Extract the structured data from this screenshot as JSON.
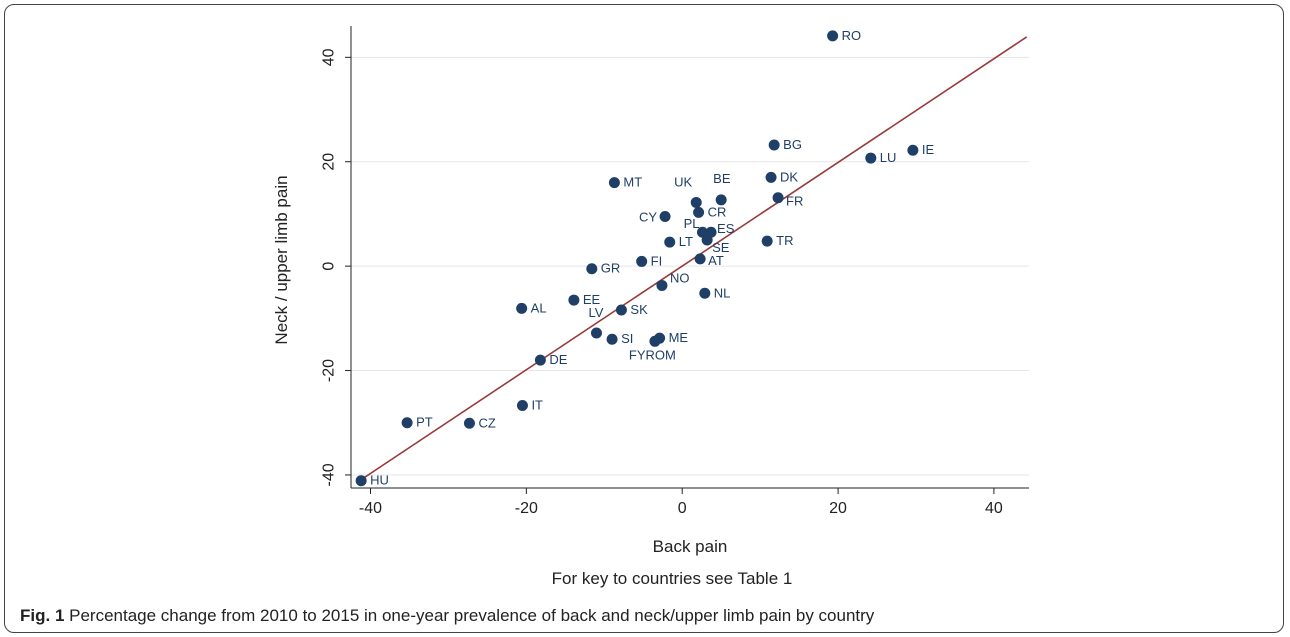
{
  "chart_data": {
    "type": "scatter",
    "xlabel": "Back pain",
    "ylabel": "Neck / upper limb pain",
    "xlim": [
      -42.5,
      44.5
    ],
    "ylim": [
      -42.5,
      46
    ],
    "xticks": [
      -40,
      -20,
      0,
      20,
      40
    ],
    "yticks": [
      -40,
      -20,
      0,
      20,
      40
    ],
    "grid": "horizontal",
    "note": "For key to countries see Table 1",
    "point_color": "#1f3f66",
    "line_color": "#9b3a3a",
    "fit_line": {
      "x": [
        -41.5,
        44.2
      ],
      "y": [
        -41.2,
        43.9
      ]
    },
    "points": [
      {
        "label": "RO",
        "x": 19.3,
        "y": 44.1
      },
      {
        "label": "BG",
        "x": 11.8,
        "y": 23.2
      },
      {
        "label": "IE",
        "x": 29.6,
        "y": 22.2
      },
      {
        "label": "LU",
        "x": 24.2,
        "y": 20.7
      },
      {
        "label": "DK",
        "x": 11.4,
        "y": 17.0
      },
      {
        "label": "MT",
        "x": -8.7,
        "y": 16.0
      },
      {
        "label": "FR",
        "x": 12.3,
        "y": 13.1
      },
      {
        "label": "BE",
        "x": 5.0,
        "y": 12.7
      },
      {
        "label": "UK",
        "x": 1.8,
        "y": 12.2
      },
      {
        "label": "CR",
        "x": 2.1,
        "y": 10.3
      },
      {
        "label": "CY",
        "x": -2.2,
        "y": 9.5
      },
      {
        "label": "PL",
        "x": 2.6,
        "y": 6.5
      },
      {
        "label": "ES",
        "x": 3.7,
        "y": 6.5
      },
      {
        "label": "SE",
        "x": 3.2,
        "y": 5.0
      },
      {
        "label": "TR",
        "x": 10.9,
        "y": 4.8
      },
      {
        "label": "LT",
        "x": -1.6,
        "y": 4.6
      },
      {
        "label": "AT",
        "x": 2.3,
        "y": 1.4
      },
      {
        "label": "FI",
        "x": -5.2,
        "y": 0.9
      },
      {
        "label": "GR",
        "x": -11.6,
        "y": -0.5
      },
      {
        "label": "NO",
        "x": -2.6,
        "y": -3.7
      },
      {
        "label": "NL",
        "x": 2.9,
        "y": -5.2
      },
      {
        "label": "EE",
        "x": -13.9,
        "y": -6.5
      },
      {
        "label": "AL",
        "x": -20.6,
        "y": -8.1
      },
      {
        "label": "SK",
        "x": -7.8,
        "y": -8.4
      },
      {
        "label": "LV",
        "x": -11.0,
        "y": -12.8
      },
      {
        "label": "ME",
        "x": -2.9,
        "y": -13.8
      },
      {
        "label": "SI",
        "x": -9.0,
        "y": -14.0
      },
      {
        "label": "FYROM",
        "x": -3.5,
        "y": -14.4
      },
      {
        "label": "DE",
        "x": -18.2,
        "y": -18.0
      },
      {
        "label": "IT",
        "x": -20.5,
        "y": -26.7
      },
      {
        "label": "PT",
        "x": -35.3,
        "y": -30.0
      },
      {
        "label": "CZ",
        "x": -27.3,
        "y": -30.1
      },
      {
        "label": "HU",
        "x": -41.2,
        "y": -41.1
      }
    ]
  },
  "caption": {
    "fig_label": "Fig. 1",
    "text": " Percentage change from 2010 to 2015 in one-year prevalence of back and neck/upper limb pain by country"
  }
}
